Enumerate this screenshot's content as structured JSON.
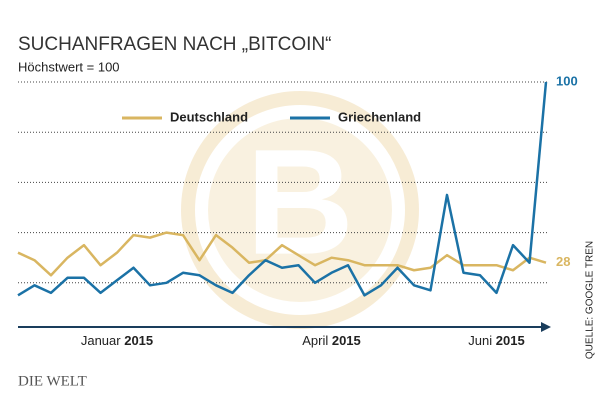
{
  "chart_data": {
    "type": "line",
    "title": "SUCHANFRAGEN NACH „BITCOIN“",
    "subtitle": "Höchstwert = 100",
    "source": "QUELLE: GOOGLE TREN",
    "logo": "DIE WELT",
    "categories": [
      null,
      null,
      null,
      null,
      null,
      null,
      "Januar 2015",
      null,
      null,
      null,
      null,
      null,
      null,
      null,
      null,
      null,
      null,
      null,
      null,
      "April 2015",
      null,
      null,
      null,
      null,
      null,
      null,
      null,
      null,
      null,
      "Juni 2015",
      null,
      null,
      null
    ],
    "series": [
      {
        "name": "Deutschland",
        "color": "#d9b661",
        "values": [
          32,
          29,
          23,
          30,
          35,
          27,
          32,
          39,
          38,
          40,
          39,
          29,
          39,
          34,
          28,
          29,
          35,
          31,
          27,
          30,
          29,
          27,
          27,
          27,
          25,
          26,
          31,
          27,
          27,
          27,
          25,
          30,
          28
        ]
      },
      {
        "name": "Griechenland",
        "color": "#1b72a6",
        "values": [
          15,
          19,
          16,
          22,
          22,
          16,
          21,
          26,
          19,
          20,
          24,
          23,
          19,
          16,
          23,
          29,
          26,
          27,
          20,
          24,
          27,
          15,
          19,
          26,
          19,
          17,
          55,
          24,
          23,
          16,
          35,
          28,
          100
        ]
      }
    ],
    "ylim": [
      0,
      100
    ],
    "yticks": [
      20,
      40,
      60,
      80,
      100
    ],
    "grid": true
  }
}
